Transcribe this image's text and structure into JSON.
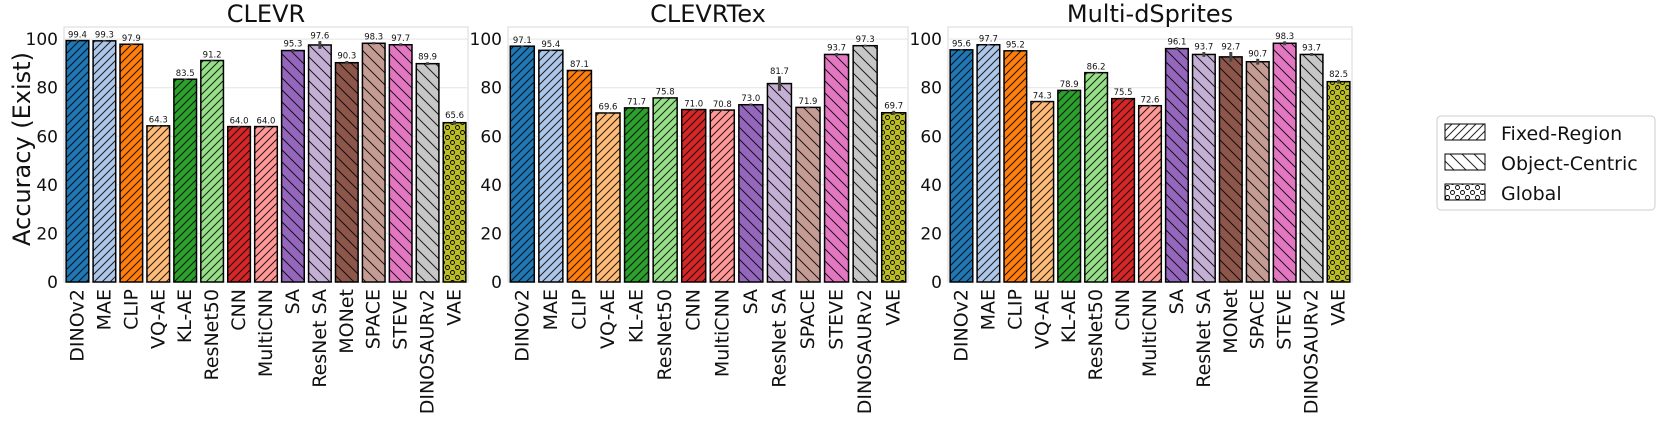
{
  "figure": {
    "ylabel": "Accuracy (Exist)",
    "yticks": [
      0,
      20,
      40,
      60,
      80,
      100
    ],
    "ylim": [
      0,
      105
    ]
  },
  "legend": {
    "placement": "right",
    "entries": [
      {
        "label": "Fixed-Region",
        "pattern": "fixed-region"
      },
      {
        "label": "Object-Centric",
        "pattern": "object-centric"
      },
      {
        "label": "Global",
        "pattern": "global"
      }
    ]
  },
  "colors": {
    "DINOv2": "#1f77b4",
    "MAE": "#aec7e8",
    "CLIP": "#ff7f0e",
    "VQ-AE": "#ffbb78",
    "KL-AE": "#2ca02c",
    "ResNet50": "#98df8a",
    "CNN": "#d62728",
    "MultiCNN": "#ff9896",
    "SA": "#9467bd",
    "ResNet SA": "#c5b0d5",
    "MONet": "#8c564b",
    "SPACE": "#c49c94",
    "STEVE": "#e377c2",
    "DINOSAURv2": "#c7c7c7",
    "VAE": "#bcbd22"
  },
  "chart_data": [
    {
      "type": "bar",
      "title": "CLEVR",
      "ylabel": "Accuracy (Exist)",
      "ylim": [
        0,
        105
      ],
      "grid": true,
      "categories": [
        "DINOv2",
        "MAE",
        "CLIP",
        "VQ-AE",
        "KL-AE",
        "ResNet50",
        "CNN",
        "MultiCNN",
        "SA",
        "ResNet SA",
        "MONet",
        "SPACE",
        "STEVE",
        "DINOSAURv2",
        "VAE"
      ],
      "values": [
        99.4,
        99.3,
        97.9,
        64.3,
        83.5,
        91.2,
        64.0,
        64.0,
        95.3,
        97.6,
        90.3,
        98.3,
        97.7,
        89.9,
        65.6
      ],
      "labels": [
        "99.4",
        "99.3",
        "97.9",
        "64.3",
        "83.5",
        "91.2",
        "64.0",
        "64.0",
        "95.3",
        "97.6",
        "90.3",
        "98.3",
        "97.7",
        "89.9",
        "65.6"
      ],
      "groups": [
        "fixed-region",
        "fixed-region",
        "fixed-region",
        "fixed-region",
        "fixed-region",
        "fixed-region",
        "fixed-region",
        "fixed-region",
        "object-centric",
        "object-centric",
        "object-centric",
        "object-centric",
        "object-centric",
        "object-centric",
        "global"
      ],
      "errors": [
        0.3,
        0.3,
        0.4,
        0.3,
        0.3,
        0.3,
        0.3,
        0.3,
        0.6,
        1.6,
        0.7,
        0.5,
        0.6,
        0.6,
        0.8
      ]
    },
    {
      "type": "bar",
      "title": "CLEVRTex",
      "ylabel": "",
      "ylim": [
        0,
        105
      ],
      "grid": true,
      "categories": [
        "DINOv2",
        "MAE",
        "CLIP",
        "VQ-AE",
        "KL-AE",
        "ResNet50",
        "CNN",
        "MultiCNN",
        "SA",
        "ResNet SA",
        "SPACE",
        "STEVE",
        "DINOSAURv2",
        "VAE"
      ],
      "values": [
        97.1,
        95.4,
        87.1,
        69.6,
        71.7,
        75.8,
        71.0,
        70.8,
        73.0,
        81.7,
        71.9,
        93.7,
        97.3,
        69.7
      ],
      "labels": [
        "97.1",
        "95.4",
        "87.1",
        "69.6",
        "71.7",
        "75.8",
        "71.0",
        "70.8",
        "73.0",
        "81.7",
        "71.9",
        "93.7",
        "97.3",
        "69.7"
      ],
      "groups": [
        "fixed-region",
        "fixed-region",
        "fixed-region",
        "fixed-region",
        "fixed-region",
        "fixed-region",
        "fixed-region",
        "fixed-region",
        "object-centric",
        "object-centric",
        "object-centric",
        "object-centric",
        "object-centric",
        "global"
      ],
      "errors": [
        0.3,
        0.3,
        0.3,
        0.3,
        0.3,
        0.3,
        0.3,
        0.3,
        0.5,
        3.0,
        0.4,
        0.6,
        0.4,
        0.8
      ]
    },
    {
      "type": "bar",
      "title": "Multi-dSprites",
      "ylabel": "",
      "ylim": [
        0,
        105
      ],
      "grid": true,
      "categories": [
        "DINOv2",
        "MAE",
        "CLIP",
        "VQ-AE",
        "KL-AE",
        "ResNet50",
        "CNN",
        "MultiCNN",
        "SA",
        "ResNet SA",
        "MONet",
        "SPACE",
        "STEVE",
        "DINOSAURv2",
        "VAE"
      ],
      "values": [
        95.6,
        97.7,
        95.2,
        74.3,
        78.9,
        86.2,
        75.5,
        72.6,
        96.1,
        93.7,
        92.7,
        90.7,
        98.3,
        93.7,
        82.5
      ],
      "labels": [
        "95.6",
        "97.7",
        "95.2",
        "74.3",
        "78.9",
        "86.2",
        "75.5",
        "72.6",
        "96.1",
        "93.7",
        "92.7",
        "90.7",
        "98.3",
        "93.7",
        "82.5"
      ],
      "groups": [
        "fixed-region",
        "fixed-region",
        "fixed-region",
        "fixed-region",
        "fixed-region",
        "fixed-region",
        "fixed-region",
        "fixed-region",
        "object-centric",
        "object-centric",
        "object-centric",
        "object-centric",
        "object-centric",
        "object-centric",
        "global"
      ],
      "errors": [
        0.3,
        0.3,
        0.3,
        0.3,
        0.3,
        0.3,
        0.4,
        0.3,
        0.6,
        1.0,
        2.0,
        1.2,
        0.8,
        0.6,
        0.8
      ]
    }
  ]
}
